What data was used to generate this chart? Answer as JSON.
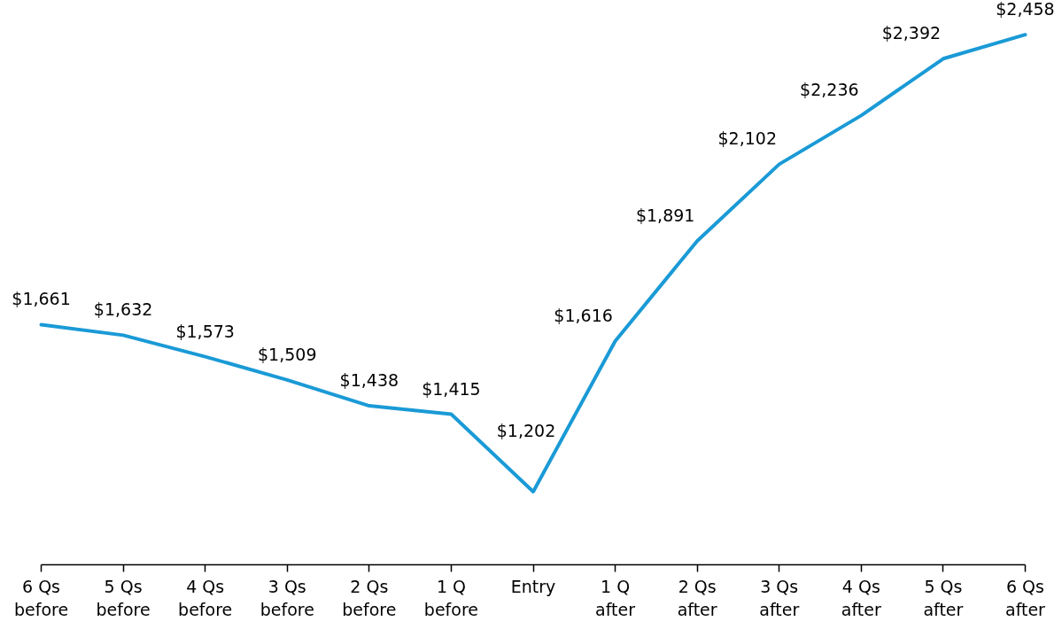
{
  "chart_data": {
    "type": "line",
    "categories": [
      "6 Qs\nbefore",
      "5 Qs\nbefore",
      "4 Qs\nbefore",
      "3 Qs\nbefore",
      "2 Qs\nbefore",
      "1 Q\nbefore",
      "Entry",
      "1 Q\nafter",
      "2 Qs\nafter",
      "3 Qs\nafter",
      "4 Qs\nafter",
      "5 Qs\nafter",
      "6 Qs\nafter"
    ],
    "series": [
      {
        "color": "#1a9ad6",
        "values": [
          1661,
          1632,
          1573,
          1509,
          1438,
          1415,
          1202,
          1616,
          1891,
          2102,
          2236,
          2392,
          2458
        ],
        "value_labels": [
          "$1,661",
          "$1,632",
          "$1,573",
          "$1,509",
          "$1,438",
          "$1,415",
          "$1,202",
          "$1,616",
          "$1,891",
          "$2,102",
          "$2,236",
          "$2,392",
          "$2,458"
        ]
      }
    ],
    "tick_labels": "x",
    "grid": false,
    "marker": "none",
    "line_style": "solid"
  }
}
